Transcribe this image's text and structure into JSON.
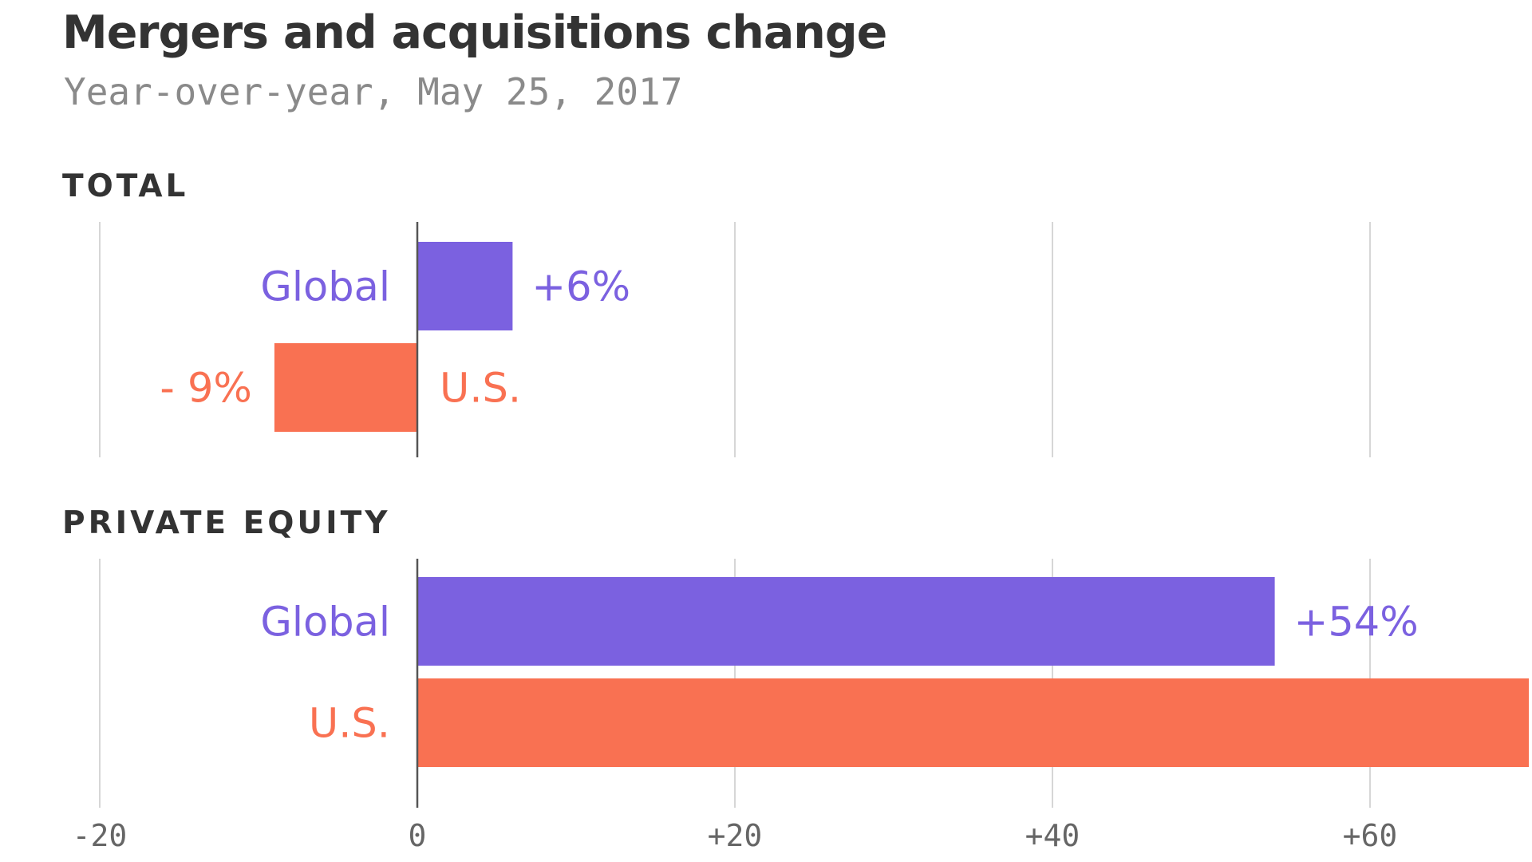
{
  "chart_data": {
    "type": "bar",
    "title": "Mergers and acquisitions change",
    "subtitle": "Year-over-year, May 25, 2017",
    "colors": {
      "Global": "#7b61e0",
      "U.S.": "#f97152"
    },
    "xlim": [
      -20,
      70
    ],
    "xticks": [
      -20,
      0,
      20,
      40,
      60
    ],
    "xtick_labels": [
      "-20",
      "0",
      "+20",
      "+40",
      "+60"
    ],
    "grid": true,
    "panels": [
      {
        "label": "TOTAL",
        "bars": [
          {
            "category": "Global",
            "value": 6,
            "value_label": "+6%"
          },
          {
            "category": "U.S.",
            "value": -9,
            "value_label": "- 9%"
          }
        ]
      },
      {
        "label": "PRIVATE EQUITY",
        "bars": [
          {
            "category": "Global",
            "value": 54,
            "value_label": "+54%"
          },
          {
            "category": "U.S.",
            "value": 70,
            "value_label": ""
          }
        ]
      }
    ]
  }
}
